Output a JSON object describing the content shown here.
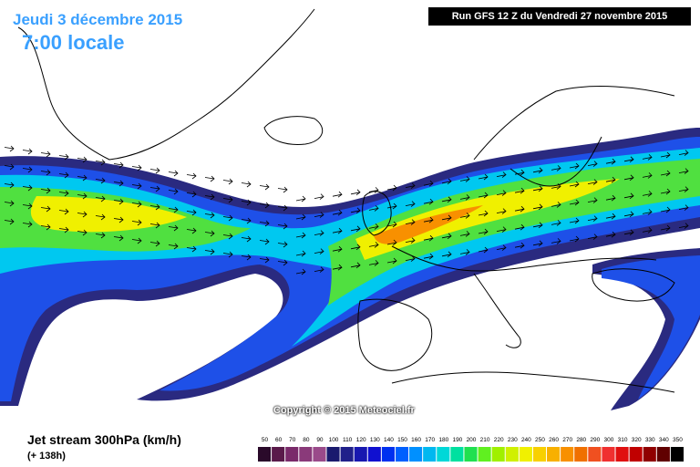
{
  "header": {
    "date_label": "Jeudi 3 décembre 2015",
    "time_label": "7:00 locale",
    "run_label": "Run GFS 12 Z du Vendredi 27 novembre 2015"
  },
  "copyright": "Copyright © 2015 Meteociel.fr",
  "legend": {
    "title": "Jet stream 300hPa (km/h)",
    "subtitle": "(+ 138h)",
    "scale_values": [
      "50",
      "60",
      "70",
      "80",
      "90",
      "100",
      "110",
      "120",
      "130",
      "140",
      "150",
      "160",
      "170",
      "180",
      "190",
      "200",
      "210",
      "220",
      "230",
      "240",
      "250",
      "260",
      "270",
      "280",
      "290",
      "300",
      "310",
      "320",
      "330",
      "340",
      "350"
    ],
    "scale_colors": [
      "#2a0a2a",
      "#5a1a4a",
      "#7a2a6a",
      "#8a3a7a",
      "#9a4a8a",
      "#1a1a6e",
      "#20208a",
      "#1818b0",
      "#1010d0",
      "#0030f0",
      "#0060ff",
      "#0090ff",
      "#00b8f0",
      "#00d8d8",
      "#00e0a0",
      "#20e050",
      "#60f020",
      "#a0f000",
      "#d0f000",
      "#f0f000",
      "#f8d000",
      "#f8b000",
      "#f89000",
      "#f07000",
      "#f05020",
      "#f03030",
      "#e01010",
      "#c00000",
      "#900000",
      "#600000",
      "#000000"
    ]
  },
  "colors": {
    "jet_outer": "#2a2a80",
    "jet_blue": "#1e50e8",
    "jet_cyan": "#00c8f0",
    "jet_green": "#50e040",
    "jet_yellow": "#f0f000",
    "jet_orange": "#f89000",
    "coast": "#000000",
    "title_blue": "#3aa0ff"
  }
}
